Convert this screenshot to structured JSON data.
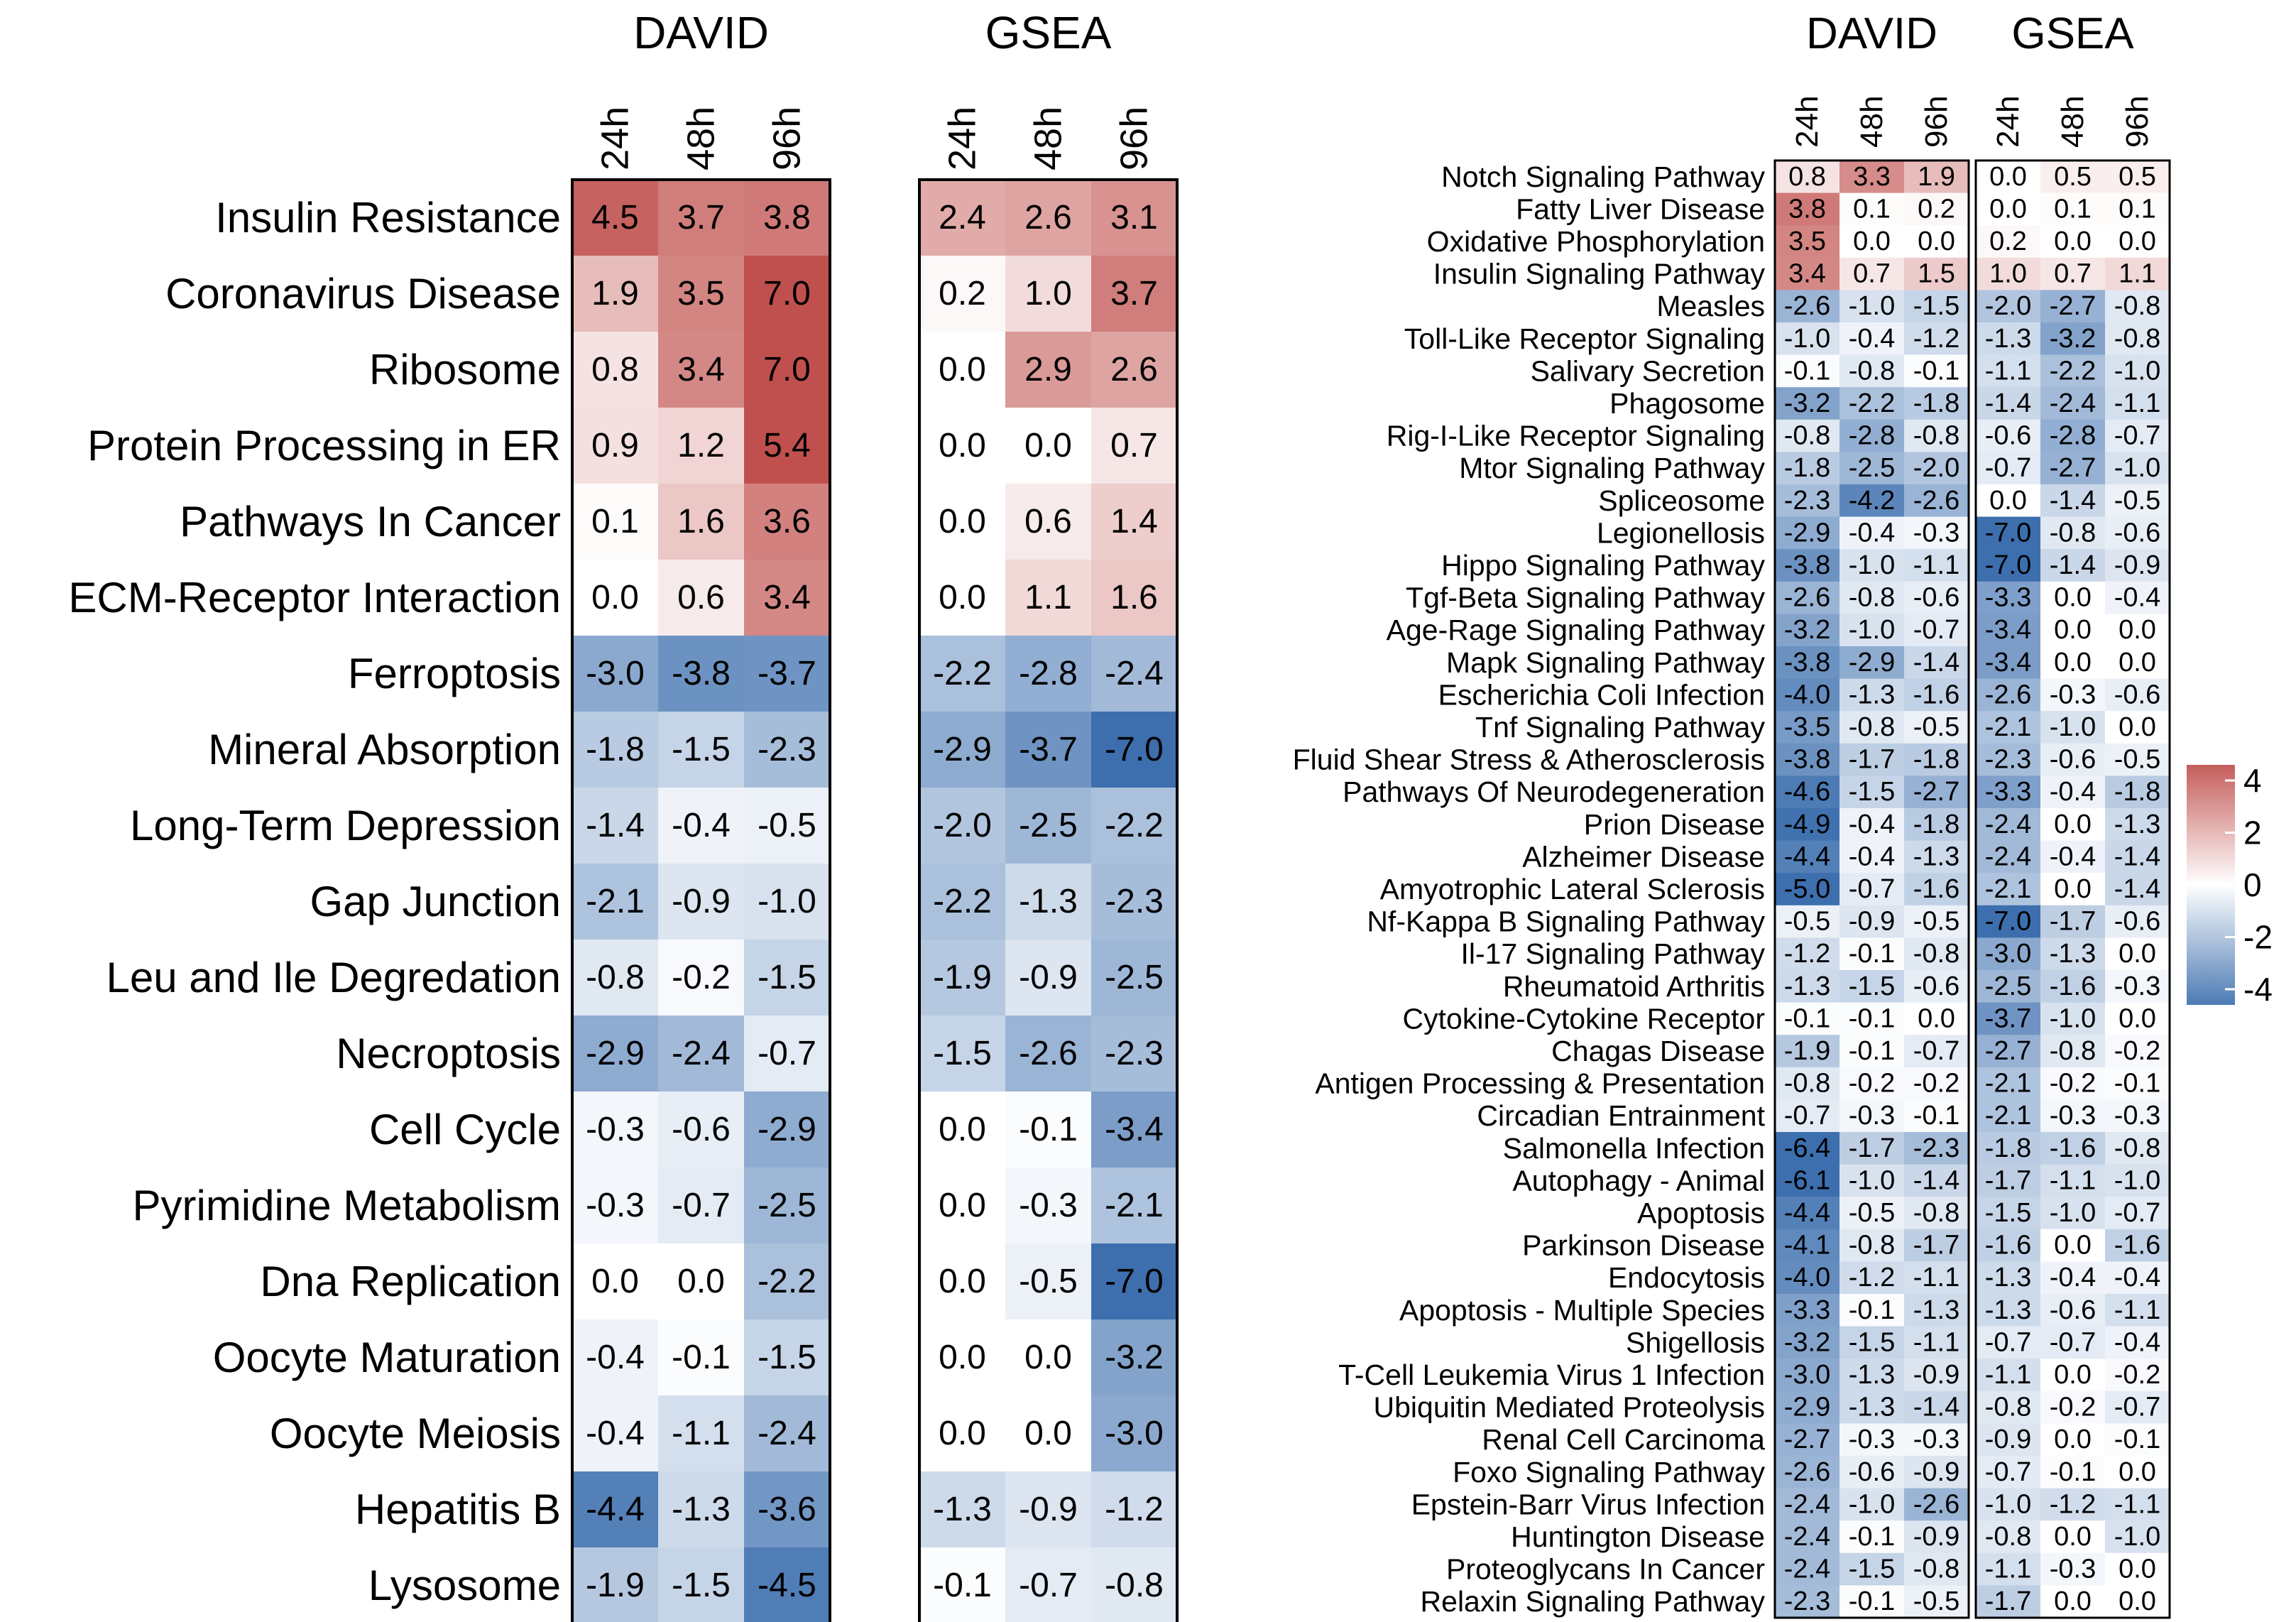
{
  "chart_data": [
    {
      "type": "heatmap",
      "title": "",
      "groups": [
        "DAVID",
        "GSEA"
      ],
      "timepoints": [
        "24h",
        "48h",
        "96h"
      ],
      "rows": [
        {
          "label": "Insulin Resistance",
          "david": [
            4.5,
            3.7,
            3.8
          ],
          "gsea": [
            2.4,
            2.6,
            3.1
          ]
        },
        {
          "label": "Coronavirus Disease",
          "david": [
            1.9,
            3.5,
            7.0
          ],
          "gsea": [
            0.2,
            1.0,
            3.7
          ]
        },
        {
          "label": "Ribosome",
          "david": [
            0.8,
            3.4,
            7.0
          ],
          "gsea": [
            0.0,
            2.9,
            2.6
          ]
        },
        {
          "label": "Protein Processing in ER",
          "david": [
            0.9,
            1.2,
            5.4
          ],
          "gsea": [
            0.0,
            0.0,
            0.7
          ]
        },
        {
          "label": "Pathways In Cancer",
          "david": [
            0.1,
            1.6,
            3.6
          ],
          "gsea": [
            0.0,
            0.6,
            1.4
          ]
        },
        {
          "label": "ECM-Receptor Interaction",
          "david": [
            0.0,
            0.6,
            3.4
          ],
          "gsea": [
            0.0,
            1.1,
            1.6
          ]
        },
        {
          "label": "Ferroptosis",
          "david": [
            -3.0,
            -3.8,
            -3.7
          ],
          "gsea": [
            -2.2,
            -2.8,
            -2.4
          ]
        },
        {
          "label": "Mineral Absorption",
          "david": [
            -1.8,
            -1.5,
            -2.3
          ],
          "gsea": [
            -2.9,
            -3.7,
            -7.0
          ]
        },
        {
          "label": "Long-Term Depression",
          "david": [
            -1.4,
            -0.4,
            -0.5
          ],
          "gsea": [
            -2.0,
            -2.5,
            -2.2
          ]
        },
        {
          "label": "Gap Junction",
          "david": [
            -2.1,
            -0.9,
            -1.0
          ],
          "gsea": [
            -2.2,
            -1.3,
            -2.3
          ]
        },
        {
          "label": "Leu and Ile Degredation",
          "david": [
            -0.8,
            -0.2,
            -1.5
          ],
          "gsea": [
            -1.9,
            -0.9,
            -2.5
          ]
        },
        {
          "label": "Necroptosis",
          "david": [
            -2.9,
            -2.4,
            -0.7
          ],
          "gsea": [
            -1.5,
            -2.6,
            -2.3
          ]
        },
        {
          "label": "Cell Cycle",
          "david": [
            -0.3,
            -0.6,
            -2.9
          ],
          "gsea": [
            0.0,
            -0.1,
            -3.4
          ]
        },
        {
          "label": "Pyrimidine Metabolism",
          "david": [
            -0.3,
            -0.7,
            -2.5
          ],
          "gsea": [
            0.0,
            -0.3,
            -2.1
          ]
        },
        {
          "label": "Dna Replication",
          "david": [
            0.0,
            0.0,
            -2.2
          ],
          "gsea": [
            0.0,
            -0.5,
            -7.0
          ]
        },
        {
          "label": "Oocyte Maturation",
          "david": [
            -0.4,
            -0.1,
            -1.5
          ],
          "gsea": [
            0.0,
            0.0,
            -3.2
          ]
        },
        {
          "label": "Oocyte Meiosis",
          "david": [
            -0.4,
            -1.1,
            -2.4
          ],
          "gsea": [
            0.0,
            0.0,
            -3.0
          ]
        },
        {
          "label": "Hepatitis B",
          "david": [
            -4.4,
            -1.3,
            -3.6
          ],
          "gsea": [
            -1.3,
            -0.9,
            -1.2
          ]
        },
        {
          "label": "Lysosome",
          "david": [
            -1.9,
            -1.5,
            -4.5
          ],
          "gsea": [
            -0.1,
            -0.7,
            -0.8
          ]
        }
      ]
    },
    {
      "type": "heatmap",
      "title": "",
      "groups": [
        "DAVID",
        "GSEA"
      ],
      "timepoints": [
        "24h",
        "48h",
        "96h"
      ],
      "rows": [
        {
          "label": "Notch Signaling Pathway",
          "david": [
            0.8,
            3.3,
            1.9
          ],
          "gsea": [
            0.0,
            0.5,
            0.5
          ]
        },
        {
          "label": "Fatty Liver Disease",
          "david": [
            3.8,
            0.1,
            0.2
          ],
          "gsea": [
            0.0,
            0.1,
            0.1
          ]
        },
        {
          "label": "Oxidative Phosphorylation",
          "david": [
            3.5,
            0.0,
            0.0
          ],
          "gsea": [
            0.2,
            0.0,
            0.0
          ]
        },
        {
          "label": "Insulin Signaling Pathway",
          "david": [
            3.4,
            0.7,
            1.5
          ],
          "gsea": [
            1.0,
            0.7,
            1.1
          ]
        },
        {
          "label": "Measles",
          "david": [
            -2.6,
            -1.0,
            -1.5
          ],
          "gsea": [
            -2.0,
            -2.7,
            -0.8
          ]
        },
        {
          "label": "Toll-Like Receptor Signaling",
          "david": [
            -1.0,
            -0.4,
            -1.2
          ],
          "gsea": [
            -1.3,
            -3.2,
            -0.8
          ]
        },
        {
          "label": "Salivary Secretion",
          "david": [
            -0.1,
            -0.8,
            -0.1
          ],
          "gsea": [
            -1.1,
            -2.2,
            -1.0
          ]
        },
        {
          "label": "Phagosome",
          "david": [
            -3.2,
            -2.2,
            -1.8
          ],
          "gsea": [
            -1.4,
            -2.4,
            -1.1
          ]
        },
        {
          "label": "Rig-I-Like Receptor Signaling",
          "david": [
            -0.8,
            -2.8,
            -0.8
          ],
          "gsea": [
            -0.6,
            -2.8,
            -0.7
          ]
        },
        {
          "label": "Mtor Signaling Pathway",
          "david": [
            -1.8,
            -2.5,
            -2.0
          ],
          "gsea": [
            -0.7,
            -2.7,
            -1.0
          ]
        },
        {
          "label": "Spliceosome",
          "david": [
            -2.3,
            -4.2,
            -2.6
          ],
          "gsea": [
            0.0,
            -1.4,
            -0.5
          ]
        },
        {
          "label": "Legionellosis",
          "david": [
            -2.9,
            -0.4,
            -0.3
          ],
          "gsea": [
            -7.0,
            -0.8,
            -0.6
          ]
        },
        {
          "label": "Hippo Signaling Pathway",
          "david": [
            -3.8,
            -1.0,
            -1.1
          ],
          "gsea": [
            -7.0,
            -1.4,
            -0.9
          ]
        },
        {
          "label": "Tgf-Beta Signaling Pathway",
          "david": [
            -2.6,
            -0.8,
            -0.6
          ],
          "gsea": [
            -3.3,
            0.0,
            -0.4
          ]
        },
        {
          "label": "Age-Rage Signaling Pathway",
          "david": [
            -3.2,
            -1.0,
            -0.7
          ],
          "gsea": [
            -3.4,
            0.0,
            0.0
          ]
        },
        {
          "label": "Mapk Signaling Pathway",
          "david": [
            -3.8,
            -2.9,
            -1.4
          ],
          "gsea": [
            -3.4,
            0.0,
            0.0
          ]
        },
        {
          "label": "Escherichia Coli Infection",
          "david": [
            -4.0,
            -1.3,
            -1.6
          ],
          "gsea": [
            -2.6,
            -0.3,
            -0.6
          ]
        },
        {
          "label": "Tnf Signaling Pathway",
          "david": [
            -3.5,
            -0.8,
            -0.5
          ],
          "gsea": [
            -2.1,
            -1.0,
            0.0
          ]
        },
        {
          "label": "Fluid Shear Stress & Atherosclerosis",
          "david": [
            -3.8,
            -1.7,
            -1.8
          ],
          "gsea": [
            -2.3,
            -0.6,
            -0.5
          ]
        },
        {
          "label": "Pathways Of Neurodegeneration",
          "david": [
            -4.6,
            -1.5,
            -2.7
          ],
          "gsea": [
            -3.3,
            -0.4,
            -1.8
          ]
        },
        {
          "label": "Prion Disease",
          "david": [
            -4.9,
            -0.4,
            -1.8
          ],
          "gsea": [
            -2.4,
            0.0,
            -1.3
          ]
        },
        {
          "label": "Alzheimer Disease",
          "david": [
            -4.4,
            -0.4,
            -1.3
          ],
          "gsea": [
            -2.4,
            -0.4,
            -1.4
          ]
        },
        {
          "label": "Amyotrophic Lateral Sclerosis",
          "david": [
            -5.0,
            -0.7,
            -1.6
          ],
          "gsea": [
            -2.1,
            0.0,
            -1.4
          ]
        },
        {
          "label": "Nf-Kappa B Signaling Pathway",
          "david": [
            -0.5,
            -0.9,
            -0.5
          ],
          "gsea": [
            -7.0,
            -1.7,
            -0.6
          ]
        },
        {
          "label": "Il-17 Signaling Pathway",
          "david": [
            -1.2,
            -0.1,
            -0.8
          ],
          "gsea": [
            -3.0,
            -1.3,
            0.0
          ]
        },
        {
          "label": "Rheumatoid Arthritis",
          "david": [
            -1.3,
            -1.5,
            -0.6
          ],
          "gsea": [
            -2.5,
            -1.6,
            -0.3
          ]
        },
        {
          "label": "Cytokine-Cytokine Receptor",
          "david": [
            -0.1,
            -0.1,
            0.0
          ],
          "gsea": [
            -3.7,
            -1.0,
            0.0
          ]
        },
        {
          "label": "Chagas Disease",
          "david": [
            -1.9,
            -0.1,
            -0.7
          ],
          "gsea": [
            -2.7,
            -0.8,
            -0.2
          ]
        },
        {
          "label": "Antigen Processing & Presentation",
          "david": [
            -0.8,
            -0.2,
            -0.2
          ],
          "gsea": [
            -2.1,
            -0.2,
            -0.1
          ]
        },
        {
          "label": "Circadian Entrainment",
          "david": [
            -0.7,
            -0.3,
            -0.1
          ],
          "gsea": [
            -2.1,
            -0.3,
            -0.3
          ]
        },
        {
          "label": "Salmonella Infection",
          "david": [
            -6.4,
            -1.7,
            -2.3
          ],
          "gsea": [
            -1.8,
            -1.6,
            -0.8
          ]
        },
        {
          "label": "Autophagy - Animal",
          "david": [
            -6.1,
            -1.0,
            -1.4
          ],
          "gsea": [
            -1.7,
            -1.1,
            -1.0
          ]
        },
        {
          "label": "Apoptosis",
          "david": [
            -4.4,
            -0.5,
            -0.8
          ],
          "gsea": [
            -1.5,
            -1.0,
            -0.7
          ]
        },
        {
          "label": "Parkinson Disease",
          "david": [
            -4.1,
            -0.8,
            -1.7
          ],
          "gsea": [
            -1.6,
            0.0,
            -1.6
          ]
        },
        {
          "label": "Endocytosis",
          "david": [
            -4.0,
            -1.2,
            -1.1
          ],
          "gsea": [
            -1.3,
            -0.4,
            -0.4
          ]
        },
        {
          "label": "Apoptosis - Multiple Species",
          "david": [
            -3.3,
            -0.1,
            -1.3
          ],
          "gsea": [
            -1.3,
            -0.6,
            -1.1
          ]
        },
        {
          "label": "Shigellosis",
          "david": [
            -3.2,
            -1.5,
            -1.1
          ],
          "gsea": [
            -0.7,
            -0.7,
            -0.4
          ]
        },
        {
          "label": "T-Cell Leukemia Virus 1 Infection",
          "david": [
            -3.0,
            -1.3,
            -0.9
          ],
          "gsea": [
            -1.1,
            0.0,
            -0.2
          ]
        },
        {
          "label": "Ubiquitin Mediated Proteolysis",
          "david": [
            -2.9,
            -1.3,
            -1.4
          ],
          "gsea": [
            -0.8,
            -0.2,
            -0.7
          ]
        },
        {
          "label": "Renal Cell Carcinoma",
          "david": [
            -2.7,
            -0.3,
            -0.3
          ],
          "gsea": [
            -0.9,
            0.0,
            -0.1
          ]
        },
        {
          "label": "Foxo Signaling Pathway",
          "david": [
            -2.6,
            -0.6,
            -0.9
          ],
          "gsea": [
            -0.7,
            -0.1,
            0.0
          ]
        },
        {
          "label": "Epstein-Barr Virus Infection",
          "david": [
            -2.4,
            -1.0,
            -2.6
          ],
          "gsea": [
            -1.0,
            -1.2,
            -1.1
          ]
        },
        {
          "label": "Huntington Disease",
          "david": [
            -2.4,
            -0.1,
            -0.9
          ],
          "gsea": [
            -0.8,
            0.0,
            -1.0
          ]
        },
        {
          "label": "Proteoglycans In Cancer",
          "david": [
            -2.4,
            -1.5,
            -0.8
          ],
          "gsea": [
            -1.1,
            -0.3,
            0.0
          ]
        },
        {
          "label": "Relaxin Signaling Pathway",
          "david": [
            -2.3,
            -0.1,
            -0.5
          ],
          "gsea": [
            -1.7,
            0.0,
            0.0
          ]
        }
      ]
    }
  ],
  "legend": {
    "ticks": [
      "4",
      "2",
      "0",
      "-2",
      "-4"
    ],
    "tick_values": [
      4,
      2,
      0,
      -2,
      -4
    ],
    "range": [
      -5,
      5
    ]
  },
  "colors": {
    "high": "#c0504d",
    "mid": "#ffffff",
    "low": "#3d6fae"
  }
}
